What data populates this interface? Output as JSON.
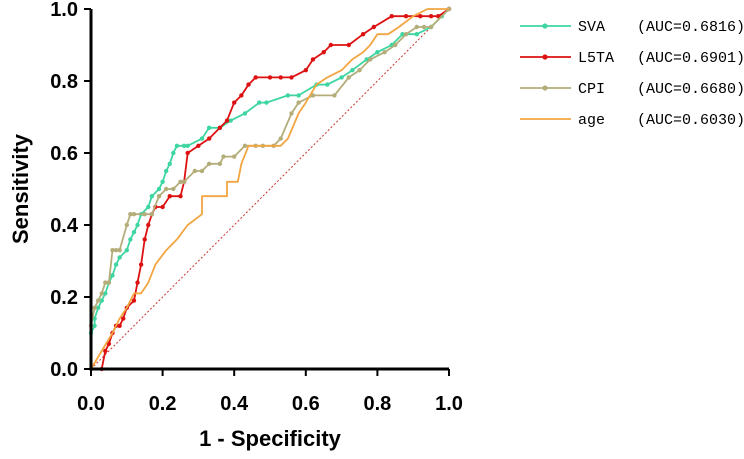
{
  "chart_data": {
    "type": "line",
    "title": "",
    "xlabel": "1 - Specificity",
    "ylabel": "Sensitivity",
    "xlim": [
      0,
      1
    ],
    "ylim": [
      0,
      1
    ],
    "xticks": [
      "0.0",
      "0.2",
      "0.4",
      "0.6",
      "0.8",
      "1.0"
    ],
    "yticks": [
      "0.0",
      "0.2",
      "0.4",
      "0.6",
      "0.8",
      "1.0"
    ],
    "grid": false,
    "legend_position": "top-right",
    "reference_line": {
      "name": "chance",
      "color": "#cc3333",
      "x": [
        0,
        1
      ],
      "y": [
        0,
        1
      ]
    },
    "series": [
      {
        "name": "SVA",
        "auc": "(AUC=0.6816)",
        "color": "#3ed6a0",
        "markers": true,
        "x": [
          0.0,
          0.0,
          0.01,
          0.01,
          0.02,
          0.03,
          0.04,
          0.05,
          0.06,
          0.07,
          0.08,
          0.1,
          0.11,
          0.12,
          0.13,
          0.14,
          0.16,
          0.17,
          0.19,
          0.2,
          0.21,
          0.22,
          0.23,
          0.24,
          0.26,
          0.27,
          0.31,
          0.33,
          0.36,
          0.39,
          0.43,
          0.47,
          0.49,
          0.55,
          0.58,
          0.63,
          0.66,
          0.7,
          0.73,
          0.77,
          0.8,
          0.84,
          0.87,
          0.91,
          0.95,
          0.98,
          1.0
        ],
        "y": [
          0.0,
          0.1,
          0.12,
          0.14,
          0.17,
          0.19,
          0.21,
          0.24,
          0.26,
          0.29,
          0.31,
          0.33,
          0.36,
          0.38,
          0.4,
          0.43,
          0.45,
          0.48,
          0.5,
          0.52,
          0.55,
          0.57,
          0.6,
          0.62,
          0.62,
          0.62,
          0.64,
          0.67,
          0.67,
          0.69,
          0.71,
          0.74,
          0.74,
          0.76,
          0.76,
          0.79,
          0.79,
          0.81,
          0.83,
          0.86,
          0.88,
          0.9,
          0.93,
          0.93,
          0.95,
          0.98,
          1.0
        ]
      },
      {
        "name": "L5TA",
        "auc": "(AUC=0.6901)",
        "color": "#dd1111",
        "markers": true,
        "x": [
          0.0,
          0.03,
          0.04,
          0.05,
          0.06,
          0.07,
          0.08,
          0.09,
          0.1,
          0.12,
          0.13,
          0.14,
          0.15,
          0.16,
          0.17,
          0.18,
          0.2,
          0.22,
          0.25,
          0.26,
          0.27,
          0.3,
          0.33,
          0.36,
          0.38,
          0.4,
          0.42,
          0.44,
          0.46,
          0.5,
          0.53,
          0.56,
          0.6,
          0.62,
          0.65,
          0.67,
          0.72,
          0.76,
          0.79,
          0.84,
          0.88,
          0.92,
          0.95,
          0.97,
          1.0
        ],
        "y": [
          0.0,
          0.0,
          0.05,
          0.07,
          0.1,
          0.12,
          0.12,
          0.14,
          0.17,
          0.19,
          0.24,
          0.29,
          0.36,
          0.4,
          0.43,
          0.45,
          0.45,
          0.48,
          0.48,
          0.52,
          0.6,
          0.62,
          0.64,
          0.67,
          0.69,
          0.74,
          0.76,
          0.79,
          0.81,
          0.81,
          0.81,
          0.81,
          0.83,
          0.86,
          0.88,
          0.9,
          0.9,
          0.93,
          0.95,
          0.98,
          0.98,
          0.98,
          0.98,
          0.98,
          1.0
        ]
      },
      {
        "name": "CPI",
        "auc": "(AUC=0.6680)",
        "color": "#b3ad7a",
        "markers": true,
        "x": [
          0.0,
          0.0,
          0.01,
          0.02,
          0.03,
          0.04,
          0.05,
          0.06,
          0.07,
          0.08,
          0.1,
          0.11,
          0.12,
          0.15,
          0.17,
          0.19,
          0.21,
          0.23,
          0.25,
          0.26,
          0.29,
          0.31,
          0.33,
          0.36,
          0.37,
          0.4,
          0.43,
          0.46,
          0.48,
          0.51,
          0.53,
          0.56,
          0.58,
          0.62,
          0.68,
          0.72,
          0.75,
          0.78,
          0.82,
          0.85,
          0.88,
          0.91,
          0.93,
          0.95,
          1.0
        ],
        "y": [
          0.0,
          0.12,
          0.17,
          0.19,
          0.21,
          0.24,
          0.24,
          0.33,
          0.33,
          0.33,
          0.4,
          0.43,
          0.43,
          0.43,
          0.43,
          0.48,
          0.5,
          0.5,
          0.52,
          0.52,
          0.55,
          0.55,
          0.57,
          0.57,
          0.59,
          0.59,
          0.62,
          0.62,
          0.62,
          0.62,
          0.64,
          0.71,
          0.74,
          0.76,
          0.76,
          0.81,
          0.83,
          0.86,
          0.88,
          0.9,
          0.93,
          0.95,
          0.95,
          0.95,
          1.0
        ]
      },
      {
        "name": "age",
        "auc": "(AUC=0.6030)",
        "color": "#f2a541",
        "markers": false,
        "x": [
          0.0,
          0.03,
          0.06,
          0.08,
          0.1,
          0.12,
          0.14,
          0.16,
          0.18,
          0.21,
          0.24,
          0.27,
          0.31,
          0.31,
          0.38,
          0.38,
          0.41,
          0.42,
          0.44,
          0.48,
          0.5,
          0.53,
          0.55,
          0.58,
          0.6,
          0.63,
          0.66,
          0.7,
          0.73,
          0.76,
          0.78,
          0.8,
          0.83,
          0.86,
          0.9,
          0.94,
          1.0
        ],
        "y": [
          0.0,
          0.05,
          0.1,
          0.14,
          0.17,
          0.21,
          0.21,
          0.24,
          0.29,
          0.33,
          0.36,
          0.4,
          0.43,
          0.48,
          0.48,
          0.52,
          0.52,
          0.57,
          0.62,
          0.62,
          0.62,
          0.62,
          0.64,
          0.71,
          0.74,
          0.79,
          0.81,
          0.83,
          0.86,
          0.88,
          0.9,
          0.93,
          0.93,
          0.95,
          0.98,
          1.0,
          1.0
        ]
      }
    ]
  }
}
